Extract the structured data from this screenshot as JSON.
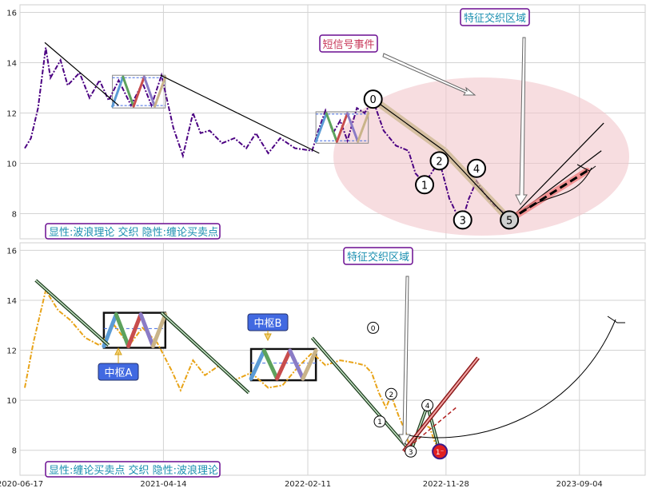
{
  "colors": {
    "price_top": "#4b0082",
    "price_bottom": "#e8a317",
    "ellipse": "#f2c6cb",
    "label_border": "#6a0d91",
    "label_text_cyan": "#1a8fb0",
    "label_text_red": "#c8385a",
    "wave_colors": [
      "#5b9bd5",
      "#5da25d",
      "#c84d4d",
      "#8a7bc6",
      "#c9b489"
    ],
    "zhongshu_fill": "#4169e1"
  },
  "chart_data": [
    {
      "type": "line",
      "panel": "top",
      "ylim": [
        7,
        16.3
      ],
      "yticks": [
        8,
        10,
        12,
        14,
        16
      ],
      "xlim": [
        "2020-06-17",
        "2024-01-20"
      ],
      "grid": true,
      "labels": {
        "bottom_left": "显性:波浪理论 交织 隐性:缠论买卖点",
        "event": "短信号事件",
        "region": "特征交织区域"
      },
      "wave_points": [
        {
          "label": "0",
          "date": "2022-06-28",
          "y": 12.55
        },
        {
          "label": "1",
          "date": "2022-10-14",
          "y": 9.15
        },
        {
          "label": "2",
          "date": "2022-11-14",
          "y": 10.1
        },
        {
          "label": "3",
          "date": "2023-01-02",
          "y": 7.75
        },
        {
          "label": "4",
          "date": "2023-01-31",
          "y": 9.8
        },
        {
          "label": "5",
          "date": "2023-04-10",
          "y": 7.75
        }
      ],
      "price_path": [
        [
          "2020-06-27",
          10.6
        ],
        [
          "2020-07-10",
          11.0
        ],
        [
          "2020-07-25",
          12.2
        ],
        [
          "2020-08-10",
          14.6
        ],
        [
          "2020-08-20",
          13.4
        ],
        [
          "2020-09-10",
          14.1
        ],
        [
          "2020-09-25",
          13.1
        ],
        [
          "2020-10-20",
          13.6
        ],
        [
          "2020-11-10",
          12.6
        ],
        [
          "2020-12-01",
          13.3
        ],
        [
          "2020-12-20",
          12.5
        ],
        [
          "2021-01-10",
          13.3
        ],
        [
          "2021-02-05",
          12.3
        ],
        [
          "2021-03-01",
          13.2
        ],
        [
          "2021-03-20",
          12.3
        ],
        [
          "2021-04-10",
          13.5
        ],
        [
          "2021-05-05",
          11.4
        ],
        [
          "2021-05-25",
          10.3
        ],
        [
          "2021-06-15",
          12.0
        ],
        [
          "2021-07-01",
          11.2
        ],
        [
          "2021-07-20",
          11.3
        ],
        [
          "2021-08-15",
          10.8
        ],
        [
          "2021-09-10",
          11.0
        ],
        [
          "2021-10-05",
          10.6
        ],
        [
          "2021-10-25",
          11.2
        ],
        [
          "2021-11-20",
          10.4
        ],
        [
          "2021-12-15",
          11.0
        ],
        [
          "2022-01-15",
          10.6
        ],
        [
          "2022-02-20",
          10.5
        ],
        [
          "2022-03-05",
          11.3
        ],
        [
          "2022-03-20",
          12.1
        ],
        [
          "2022-04-05",
          11.2
        ],
        [
          "2022-04-20",
          11.7
        ],
        [
          "2022-05-05",
          10.9
        ],
        [
          "2022-05-25",
          12.2
        ],
        [
          "2022-06-10",
          12.0
        ],
        [
          "2022-06-28",
          12.5
        ],
        [
          "2022-07-20",
          11.3
        ],
        [
          "2022-08-15",
          10.7
        ],
        [
          "2022-09-10",
          10.5
        ],
        [
          "2022-09-25",
          9.6
        ],
        [
          "2022-10-14",
          9.2
        ],
        [
          "2022-10-28",
          9.6
        ],
        [
          "2022-11-14",
          10.1
        ],
        [
          "2022-12-05",
          8.6
        ],
        [
          "2022-12-20",
          8.0
        ],
        [
          "2023-01-02",
          7.8
        ],
        [
          "2023-01-15",
          8.6
        ],
        [
          "2023-01-31",
          9.3
        ],
        [
          "2023-02-20",
          8.7
        ],
        [
          "2023-03-10",
          8.3
        ],
        [
          "2023-04-10",
          7.9
        ]
      ],
      "trend_segments": [
        [
          [
            "2020-08-08",
            14.8
          ],
          [
            "2021-01-10",
            12.3
          ]
        ],
        [
          [
            "2021-04-08",
            13.5
          ],
          [
            "2022-03-07",
            10.4
          ]
        ],
        [
          [
            "2022-06-28",
            12.55
          ],
          [
            "2022-11-24",
            10.5
          ]
        ],
        [
          [
            "2022-11-24",
            10.5
          ],
          [
            "2023-04-10",
            7.75
          ]
        ],
        [
          [
            "2023-04-10",
            7.75
          ],
          [
            "2023-10-25",
            11.6
          ]
        ],
        [
          [
            "2023-04-10",
            7.75
          ],
          [
            "2023-10-20",
            10.5
          ]
        ]
      ],
      "zhongshu_boxes": [
        {
          "x0": "2020-12-28",
          "x1": "2021-04-18",
          "y0": 12.2,
          "y1": 13.5
        },
        {
          "x0": "2022-02-28",
          "x1": "2022-06-18",
          "y0": 10.8,
          "y1": 12.05
        }
      ],
      "forecast": {
        "from": [
          "2023-04-10",
          7.75
        ],
        "to": [
          "2023-09-20",
          9.7
        ]
      }
    },
    {
      "type": "line",
      "panel": "bottom",
      "ylim": [
        7,
        16.3
      ],
      "yticks": [
        8,
        10,
        12,
        14,
        16
      ],
      "xlim": [
        "2020-06-17",
        "2024-01-20"
      ],
      "xticks": [
        "2020-06-17",
        "2021-04-14",
        "2022-02-11",
        "2022-11-28",
        "2023-09-04"
      ],
      "grid": true,
      "labels": {
        "bottom_left": "缠论买卖点 交织 隐性:波浪理论",
        "bottom_left_prefix": "显性:",
        "region": "特征交织区域",
        "zhongshu_a": "中枢A",
        "zhongshu_b": "中枢B"
      },
      "wave_points": [
        {
          "label": "0",
          "date": "2022-06-28",
          "y": 12.9
        },
        {
          "label": "1",
          "date": "2022-07-12",
          "y": 9.15
        },
        {
          "label": "2",
          "date": "2022-08-05",
          "y": 10.25
        },
        {
          "label": "3",
          "date": "2022-09-15",
          "y": 7.95
        },
        {
          "label": "4",
          "date": "2022-10-20",
          "y": 9.8
        },
        {
          "label": "1",
          "date": "2022-11-15",
          "y": 7.95,
          "label_display": "1⁻"
        }
      ],
      "price_path": [
        [
          "2020-06-27",
          10.5
        ],
        [
          "2020-07-15",
          12.3
        ],
        [
          "2020-08-10",
          14.4
        ],
        [
          "2020-09-05",
          13.6
        ],
        [
          "2020-10-01",
          13.2
        ],
        [
          "2020-11-01",
          12.5
        ],
        [
          "2020-12-01",
          12.2
        ],
        [
          "2021-01-01",
          13.0
        ],
        [
          "2021-02-01",
          12.2
        ],
        [
          "2021-03-01",
          12.9
        ],
        [
          "2021-04-01",
          12.3
        ],
        [
          "2021-05-01",
          11.2
        ],
        [
          "2021-05-20",
          10.4
        ],
        [
          "2021-06-15",
          11.6
        ],
        [
          "2021-07-10",
          11.0
        ],
        [
          "2021-08-10",
          11.4
        ],
        [
          "2021-09-10",
          10.8
        ],
        [
          "2021-10-15",
          11.1
        ],
        [
          "2021-11-20",
          10.5
        ],
        [
          "2021-12-20",
          10.6
        ],
        [
          "2022-01-20",
          11.3
        ],
        [
          "2022-02-20",
          11.9
        ],
        [
          "2022-03-20",
          11.4
        ],
        [
          "2022-04-20",
          11.6
        ],
        [
          "2022-05-20",
          11.5
        ],
        [
          "2022-06-10",
          11.4
        ],
        [
          "2022-06-25",
          11.1
        ],
        [
          "2022-07-10",
          10.3
        ],
        [
          "2022-07-25",
          9.7
        ],
        [
          "2022-08-05",
          10.2
        ],
        [
          "2022-08-20",
          9.4
        ],
        [
          "2022-09-05",
          8.7
        ],
        [
          "2022-09-15",
          7.9
        ],
        [
          "2022-09-30",
          8.6
        ],
        [
          "2022-10-15",
          9.0
        ],
        [
          "2022-10-25",
          8.9
        ],
        [
          "2022-11-05",
          8.3
        ],
        [
          "2022-11-15",
          8.1
        ]
      ],
      "trend_segments": [
        [
          [
            "2020-07-20",
            14.8
          ],
          [
            "2020-12-20",
            12.2
          ]
        ],
        [
          [
            "2021-04-10",
            13.5
          ],
          [
            "2021-10-10",
            10.3
          ]
        ],
        [
          [
            "2022-02-20",
            12.5
          ],
          [
            "2022-09-15",
            7.95
          ]
        ],
        [
          [
            "2022-09-15",
            7.95
          ],
          [
            "2022-10-20",
            9.8
          ]
        ],
        [
          [
            "2022-10-20",
            9.8
          ],
          [
            "2022-11-15",
            7.95
          ]
        ]
      ],
      "zhongshu_boxes": [
        {
          "x0": "2020-12-10",
          "x1": "2021-04-18",
          "y0": 12.1,
          "y1": 13.5
        },
        {
          "x0": "2021-10-15",
          "x1": "2022-02-28",
          "y0": 10.8,
          "y1": 12.05
        }
      ]
    }
  ]
}
